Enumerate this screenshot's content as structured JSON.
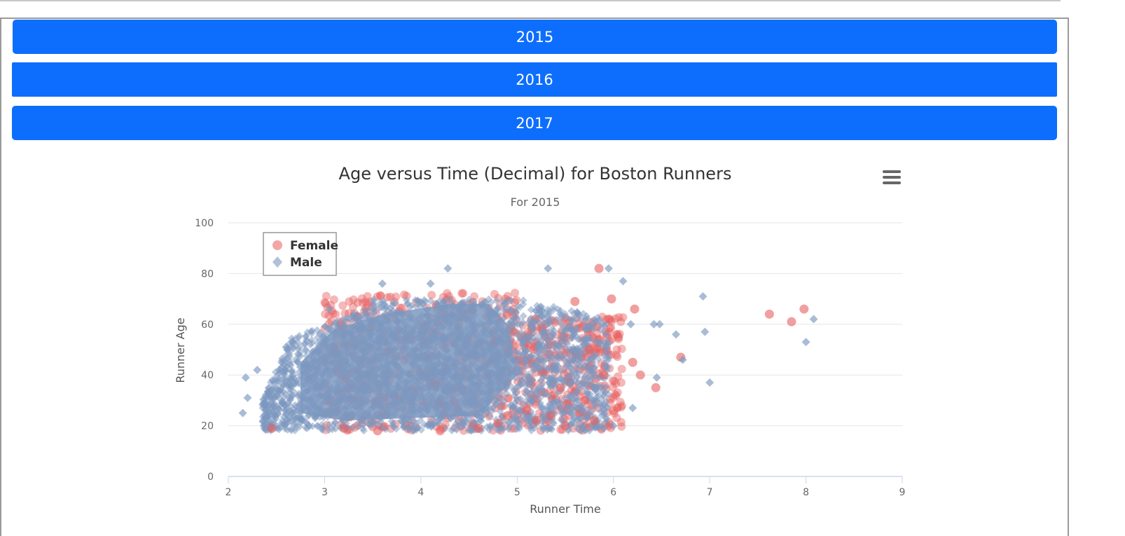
{
  "years": [
    "2015",
    "2016",
    "2017"
  ],
  "chart_data": {
    "type": "scatter",
    "title": "Age versus Time (Decimal) for Boston Runners",
    "subtitle": "For 2015",
    "xlabel": "Runner Time",
    "ylabel": "Runner Age",
    "xlim": [
      2,
      9
    ],
    "ylim": [
      0,
      100
    ],
    "xticks": [
      "2",
      "3",
      "4",
      "5",
      "6",
      "7",
      "8",
      "9"
    ],
    "yticks": [
      "0",
      "20",
      "40",
      "60",
      "80",
      "100"
    ],
    "legend_placement": "top-left",
    "grid": true,
    "series": [
      {
        "name": "Female",
        "marker": "circle",
        "color": "#e85f5f",
        "points": [
          [
            7.62,
            64
          ],
          [
            7.85,
            61
          ],
          [
            7.98,
            66
          ],
          [
            6.7,
            47
          ],
          [
            6.44,
            35
          ],
          [
            6.28,
            40
          ],
          [
            6.22,
            66
          ],
          [
            5.85,
            82
          ],
          [
            2.45,
            19
          ],
          [
            6.2,
            45
          ],
          [
            5.98,
            70
          ],
          [
            5.6,
            69
          ],
          [
            4.2,
            18
          ],
          [
            5.5,
            20
          ],
          [
            5.8,
            22
          ],
          [
            6.0,
            26
          ],
          [
            5.2,
            22
          ],
          [
            5.35,
            24
          ],
          [
            5.7,
            30
          ],
          [
            5.9,
            40
          ],
          [
            6.05,
            55
          ],
          [
            4.8,
            21
          ],
          [
            5.1,
            26
          ],
          [
            4.6,
            19
          ],
          [
            5.45,
            35
          ],
          [
            5.75,
            50
          ],
          [
            5.95,
            62
          ],
          [
            3.55,
            18
          ],
          [
            3.2,
            19
          ],
          [
            4.9,
            24
          ]
        ]
      },
      {
        "name": "Male",
        "marker": "diamond",
        "color": "#7b98c0",
        "points": [
          [
            6.93,
            71
          ],
          [
            6.95,
            57
          ],
          [
            7.0,
            37
          ],
          [
            8.08,
            62
          ],
          [
            8.0,
            53
          ],
          [
            6.65,
            56
          ],
          [
            6.72,
            46
          ],
          [
            6.42,
            60
          ],
          [
            6.48,
            60
          ],
          [
            6.45,
            39
          ],
          [
            6.2,
            27
          ],
          [
            6.1,
            77
          ],
          [
            4.28,
            82
          ],
          [
            5.32,
            82
          ],
          [
            5.95,
            82
          ],
          [
            2.15,
            25
          ],
          [
            2.2,
            31
          ],
          [
            2.3,
            42
          ],
          [
            2.18,
            39
          ],
          [
            2.6,
            51
          ],
          [
            3.05,
            66
          ],
          [
            4.1,
            76
          ],
          [
            3.6,
            76
          ],
          [
            6.18,
            60
          ],
          [
            5.9,
            19
          ],
          [
            6.0,
            20
          ]
        ]
      }
    ]
  }
}
